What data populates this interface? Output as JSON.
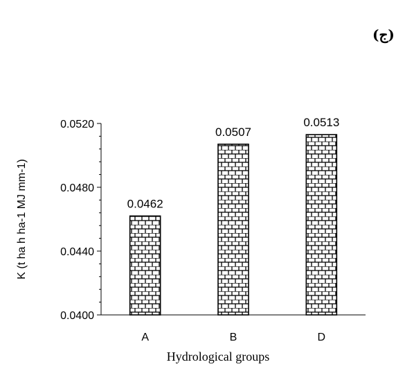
{
  "panel_label": "(ج)",
  "chart_data": {
    "type": "bar",
    "categories": [
      "A",
      "B",
      "D"
    ],
    "values": [
      0.0462,
      0.0507,
      0.0513
    ],
    "data_labels": [
      "0.0462",
      "0.0507",
      "0.0513"
    ],
    "title": "",
    "xlabel": "Hydrological groups",
    "ylabel": "K (t ha h ha-1 MJ mm-1)",
    "ylim": [
      0.04,
      0.052
    ],
    "yticks": [
      0.04,
      0.044,
      0.048,
      0.052
    ],
    "ytick_labels": [
      "0.0400",
      "0.0440",
      "0.0480",
      "0.0520"
    ],
    "grid": false,
    "legend": "none",
    "bar_fill": "brick-pattern",
    "bar_color": "#000000"
  }
}
